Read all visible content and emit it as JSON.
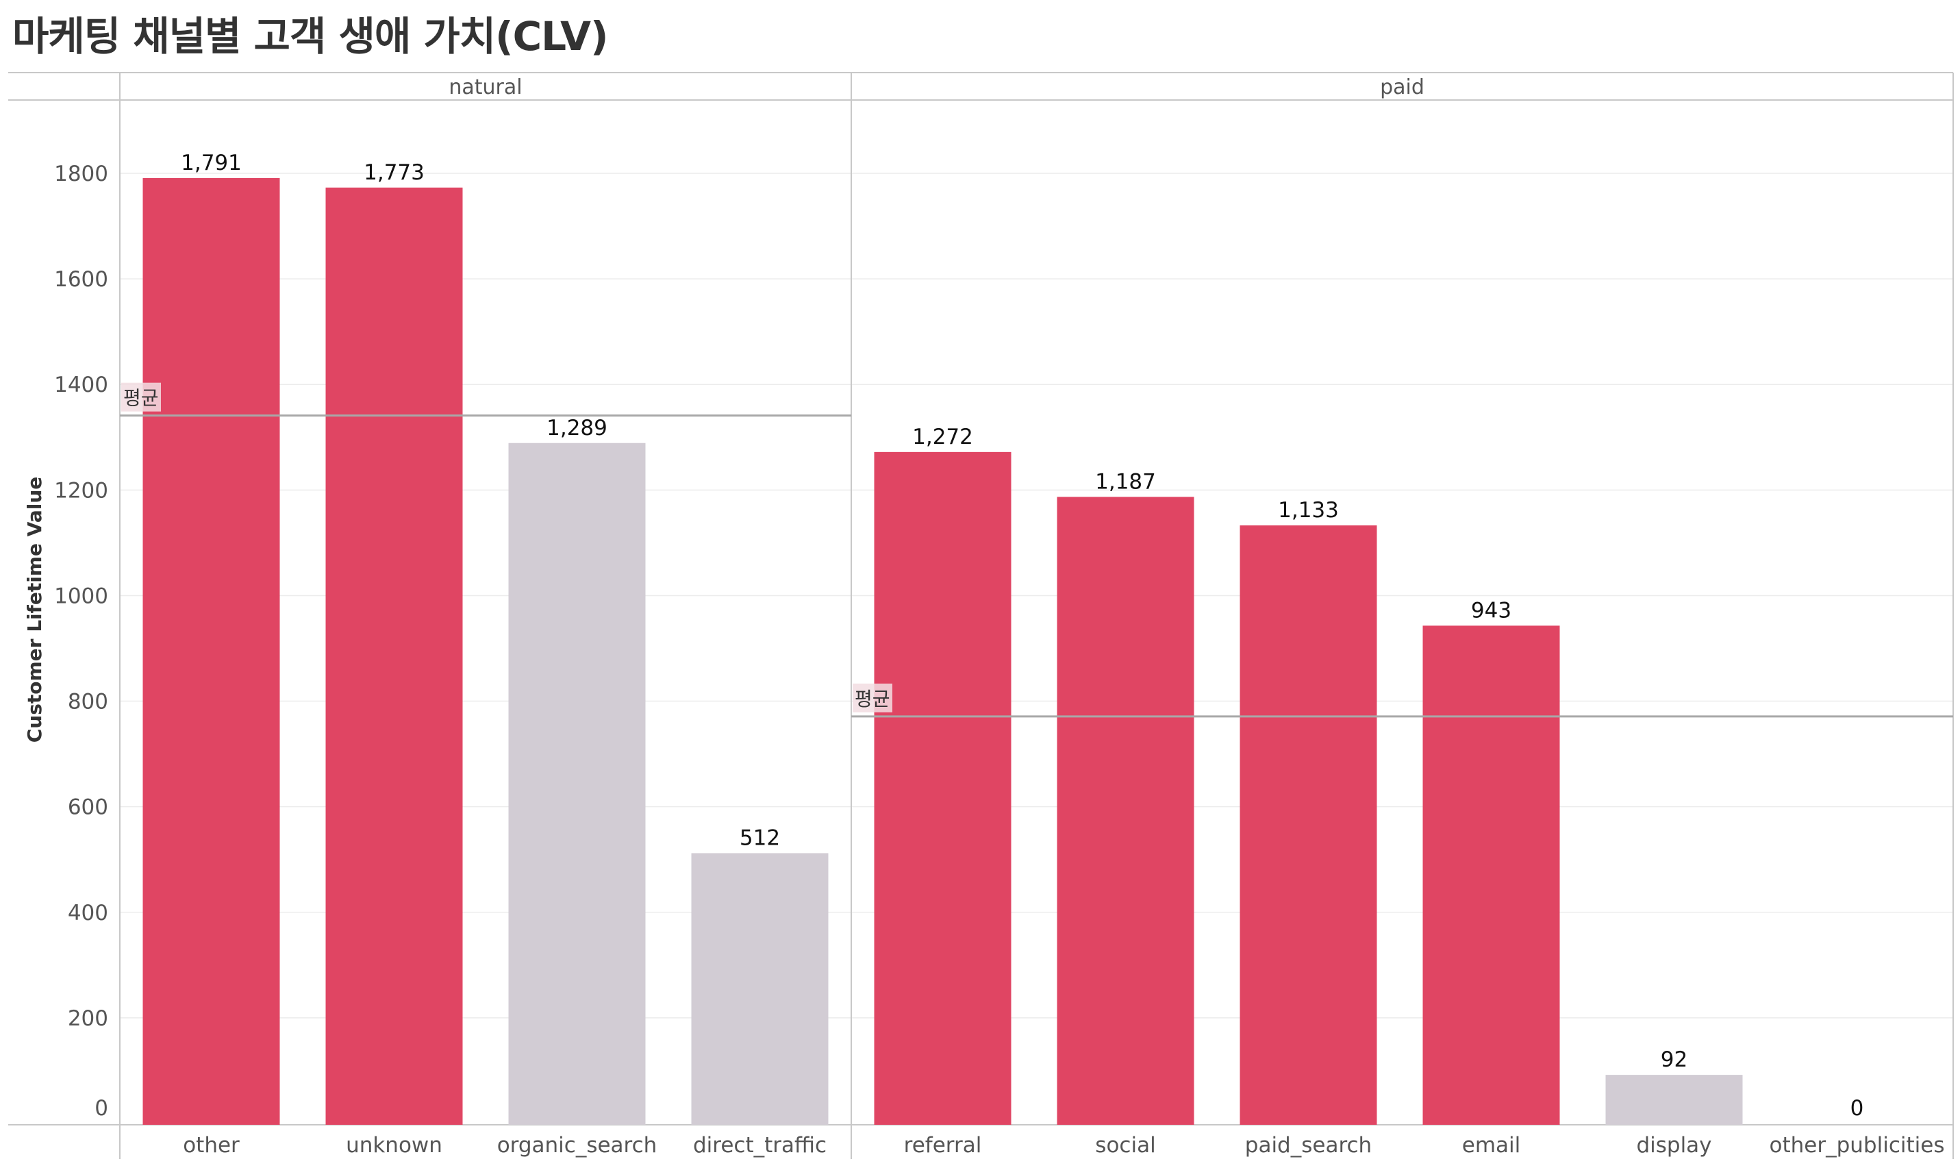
{
  "title": "마케팅 채널별 고객 생애 가치(CLV)",
  "colors": {
    "highlight": "#e04563",
    "muted": "#d2ccd4",
    "grid": "#ececec",
    "axis_line": "#c8c8c8",
    "avg_line": "#a8a8a8",
    "text": "#555555",
    "label": "#111111"
  },
  "chart_data": {
    "type": "bar",
    "title": "마케팅 채널별 고객 생애 가치(CLV)",
    "ylabel": "Customer Lifetime Value",
    "xlabel": "",
    "ylim": [
      0,
      1900
    ],
    "yticks": [
      0,
      200,
      400,
      600,
      800,
      1000,
      1200,
      1400,
      1600,
      1800
    ],
    "grid": true,
    "average_label": "평균",
    "panels": [
      {
        "name": "natural",
        "average": 1341,
        "categories": [
          "other",
          "unknown",
          "organic_search",
          "direct_traffic"
        ],
        "values": [
          1791,
          1773,
          1289,
          512
        ],
        "labels": [
          "1,791",
          "1,773",
          "1,289",
          "512"
        ],
        "highlight": [
          true,
          true,
          false,
          false
        ]
      },
      {
        "name": "paid",
        "average": 771,
        "categories": [
          "referral",
          "social",
          "paid_search",
          "email",
          "display",
          "other_publicities"
        ],
        "values": [
          1272,
          1187,
          1133,
          943,
          92,
          0
        ],
        "labels": [
          "1,272",
          "1,187",
          "1,133",
          "943",
          "92",
          "0"
        ],
        "highlight": [
          true,
          true,
          true,
          true,
          false,
          false
        ]
      }
    ]
  }
}
